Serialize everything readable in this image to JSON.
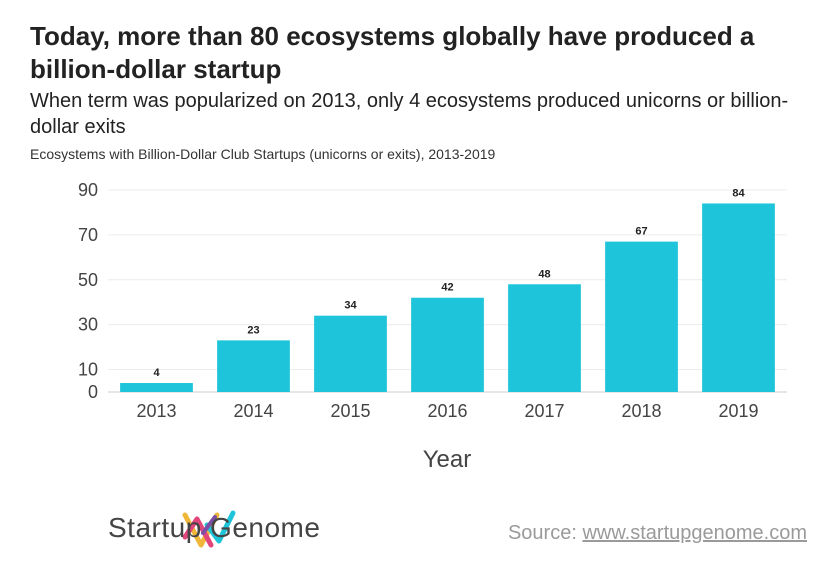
{
  "header": {
    "title": "Today, more than 80 ecosystems globally have produced a billion-dollar startup",
    "subtitle": "When term was popularized on 2013, only 4 ecosystems produced unicorns or billion-dollar exits",
    "caption": "Ecosystems with Billion-Dollar Club Startups (unicorns or exits), 2013-2019"
  },
  "chart_data": {
    "type": "bar",
    "categories": [
      "2013",
      "2014",
      "2015",
      "2016",
      "2017",
      "2018",
      "2019"
    ],
    "values": [
      4,
      23,
      34,
      42,
      48,
      67,
      84
    ],
    "xlabel": "Year",
    "ylabel": "",
    "ylim": [
      0,
      90
    ],
    "yticks": [
      0,
      10,
      30,
      50,
      70,
      90
    ],
    "bar_color": "#1ec4d9",
    "grid": true,
    "data_labels": true
  },
  "footer": {
    "brand": "Startup Genome",
    "source_prefix": "Source: ",
    "source_link": "www.startupgenome.com"
  }
}
